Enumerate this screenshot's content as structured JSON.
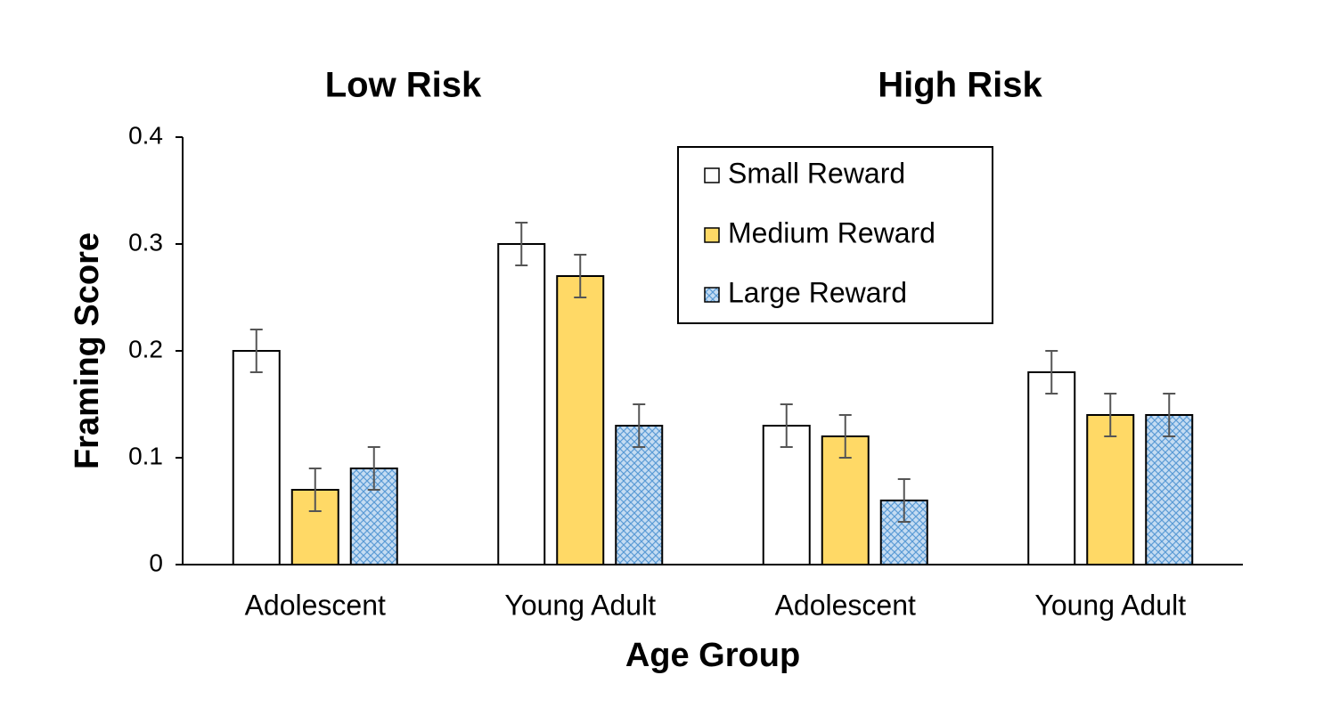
{
  "chart_data": {
    "type": "bar",
    "annotations": [
      "Low Risk",
      "High Risk"
    ],
    "x_label": "Age Group",
    "y_label": "Framing Score",
    "categories": [
      "Adolescent",
      "Young Adult",
      "Adolescent",
      "Young Adult"
    ],
    "series": [
      {
        "name": "Small Reward",
        "color": "#ffffff",
        "values": [
          0.2,
          0.3,
          0.13,
          0.18
        ],
        "errors": [
          0.02,
          0.02,
          0.02,
          0.02
        ]
      },
      {
        "name": "Medium Reward",
        "color": "#ffd966",
        "values": [
          0.07,
          0.27,
          0.12,
          0.14
        ],
        "errors": [
          0.02,
          0.02,
          0.02,
          0.02
        ]
      },
      {
        "name": "Large Reward",
        "color": "#c5dcf2",
        "pattern": "crosshatch",
        "values": [
          0.09,
          0.13,
          0.06,
          0.14
        ],
        "errors": [
          0.02,
          0.02,
          0.02,
          0.02
        ]
      }
    ],
    "ylim": [
      0,
      0.4
    ],
    "yticks": [
      0,
      0.1,
      0.2,
      0.3,
      0.4
    ],
    "grid": false,
    "legend": "upper-center"
  }
}
